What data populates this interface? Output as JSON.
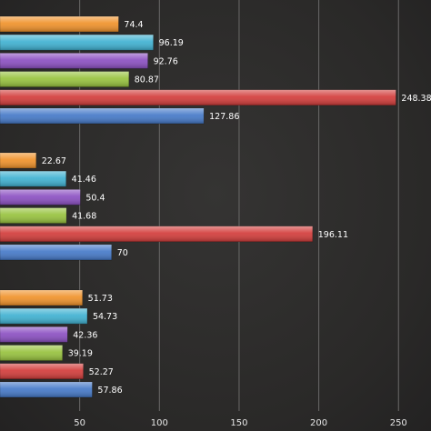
{
  "chart_data": {
    "type": "bar",
    "orientation": "horizontal",
    "groups": [
      {
        "bars": [
          {
            "value": 74.4,
            "label": "74.4",
            "color": "#f0922a"
          },
          {
            "value": 96.19,
            "label": "96.19",
            "color": "#3fb1d1"
          },
          {
            "value": 92.76,
            "label": "92.76",
            "color": "#8b4fc2"
          },
          {
            "value": 80.87,
            "label": "80.87",
            "color": "#97c23d"
          },
          {
            "value": 248.385,
            "label": "248.385",
            "color": "#d23c3a"
          },
          {
            "value": 127.86,
            "label": "127.86",
            "color": "#4579c8"
          }
        ]
      },
      {
        "bars": [
          {
            "value": 22.67,
            "label": "22.67",
            "color": "#f0922a"
          },
          {
            "value": 41.46,
            "label": "41.46",
            "color": "#3fb1d1"
          },
          {
            "value": 50.4,
            "label": "50.4",
            "color": "#8b4fc2"
          },
          {
            "value": 41.68,
            "label": "41.68",
            "color": "#97c23d"
          },
          {
            "value": 196.11,
            "label": "196.11",
            "color": "#d23c3a"
          },
          {
            "value": 70,
            "label": "70",
            "color": "#4579c8"
          }
        ]
      },
      {
        "bars": [
          {
            "value": 51.73,
            "label": "51.73",
            "color": "#f0922a"
          },
          {
            "value": 54.73,
            "label": "54.73",
            "color": "#3fb1d1"
          },
          {
            "value": 42.36,
            "label": "42.36",
            "color": "#8b4fc2"
          },
          {
            "value": 39.19,
            "label": "39.19",
            "color": "#97c23d"
          },
          {
            "value": 52.27,
            "label": "52.27",
            "color": "#d23c3a"
          },
          {
            "value": 57.86,
            "label": "57.86",
            "color": "#4579c8"
          }
        ]
      }
    ],
    "x_ticks": [
      50,
      100,
      150,
      200,
      250
    ],
    "xlim": [
      0,
      268
    ],
    "grid": true,
    "title": "",
    "xlabel": "",
    "ylabel": ""
  }
}
